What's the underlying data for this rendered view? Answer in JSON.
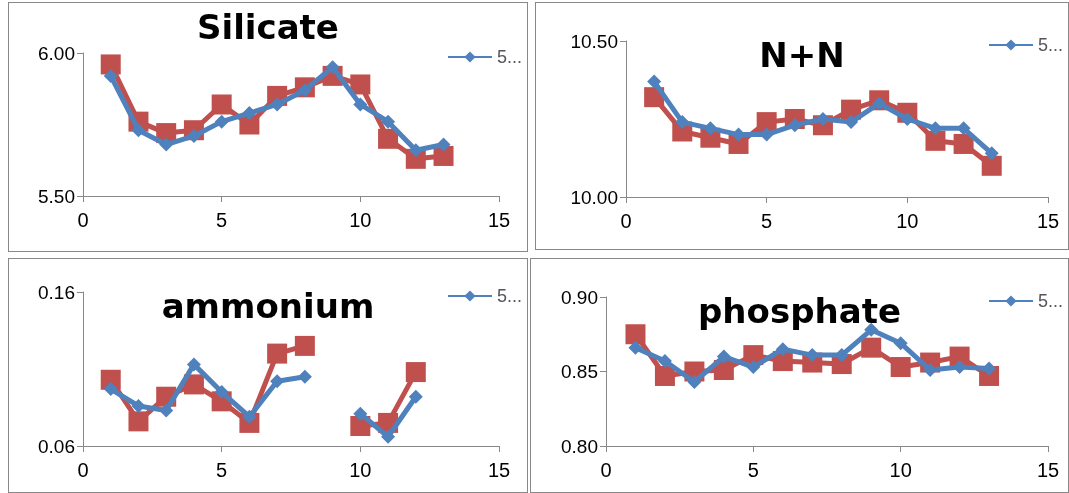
{
  "chart_data": [
    {
      "type": "line",
      "title": "Silicate",
      "x": [
        1,
        2,
        3,
        4,
        5,
        6,
        7,
        8,
        9,
        10,
        11,
        12,
        13
      ],
      "legend": "top right",
      "xlim": [
        0,
        15
      ],
      "xticks": [
        0,
        5,
        10,
        15
      ],
      "ylim": [
        5.5,
        6
      ],
      "yticks": [
        {
          "value": 5.5,
          "label": "5.50"
        },
        {
          "value": 6,
          "label": "6.00"
        }
      ],
      "series": [
        {
          "name": "5...",
          "color": "#4f81bd",
          "marker": "diamond",
          "values": [
            5.92,
            5.73,
            5.68,
            5.71,
            5.76,
            5.79,
            5.82,
            5.87,
            5.95,
            5.82,
            5.76,
            5.66,
            5.68
          ]
        },
        {
          "color": "#c0504d",
          "marker": "square",
          "values": [
            5.96,
            5.76,
            5.72,
            5.73,
            5.82,
            5.75,
            5.85,
            5.88,
            5.92,
            5.89,
            5.7,
            5.63,
            5.64
          ]
        }
      ]
    },
    {
      "type": "line",
      "title": "N+N",
      "x": [
        1,
        2,
        3,
        4,
        5,
        6,
        7,
        8,
        9,
        10,
        11,
        12,
        13
      ],
      "legend": "top right",
      "xlim": [
        0,
        15
      ],
      "xticks": [
        0,
        5,
        10,
        15
      ],
      "ylim": [
        10,
        10.5
      ],
      "yticks": [
        {
          "value": 10,
          "label": "10.00"
        },
        {
          "value": 10.5,
          "label": "10.50"
        }
      ],
      "series": [
        {
          "name": "5...",
          "color": "#4f81bd",
          "marker": "diamond",
          "values": [
            10.37,
            10.24,
            10.22,
            10.2,
            10.2,
            10.23,
            10.25,
            10.24,
            10.3,
            10.25,
            10.22,
            10.22,
            10.14
          ]
        },
        {
          "color": "#c0504d",
          "marker": "square",
          "values": [
            10.32,
            10.21,
            10.19,
            10.17,
            10.24,
            10.25,
            10.23,
            10.28,
            10.31,
            10.27,
            10.18,
            10.17,
            10.1
          ]
        }
      ]
    },
    {
      "type": "line",
      "title": "ammonium",
      "x": [
        1,
        2,
        3,
        4,
        5,
        6,
        7,
        8,
        9,
        10,
        11,
        12
      ],
      "legend": "top right",
      "xlim": [
        0,
        15
      ],
      "xticks": [
        0,
        5,
        10,
        15
      ],
      "ylim": [
        0.06,
        0.16
      ],
      "yticks": [
        0.06,
        0.16
      ],
      "series": [
        {
          "name": "5...",
          "color": "#4f81bd",
          "marker": "diamond",
          "values": [
            0.097,
            0.086,
            0.083,
            0.113,
            0.095,
            0.079,
            0.102,
            0.105,
            null,
            0.081,
            0.066,
            0.092
          ]
        },
        {
          "color": "#c0504d",
          "marker": "square",
          "values": [
            0.103,
            0.076,
            0.092,
            0.1,
            0.089,
            0.075,
            0.12,
            0.125,
            null,
            0.073,
            0.075,
            0.108
          ]
        }
      ]
    },
    {
      "type": "line",
      "title": "phosphate",
      "x": [
        1,
        2,
        3,
        4,
        5,
        6,
        7,
        8,
        9,
        10,
        11,
        12,
        13
      ],
      "legend": "top right",
      "xlim": [
        0,
        15
      ],
      "xticks": [
        0,
        5,
        10,
        15
      ],
      "ylim": [
        0.8,
        0.9
      ],
      "yticks": [
        {
          "value": 0.8,
          "label": "0.80"
        },
        {
          "value": 0.85,
          "label": "0.85"
        },
        {
          "value": 0.9,
          "label": "0.90"
        }
      ],
      "series": [
        {
          "name": "5...",
          "color": "#4f81bd",
          "marker": "diamond",
          "values": [
            0.866,
            0.857,
            0.843,
            0.86,
            0.853,
            0.865,
            0.861,
            0.861,
            0.878,
            0.869,
            0.851,
            0.853,
            0.852
          ]
        },
        {
          "color": "#c0504d",
          "marker": "square",
          "values": [
            0.875,
            0.847,
            0.85,
            0.851,
            0.861,
            0.857,
            0.856,
            0.855,
            0.866,
            0.853,
            0.856,
            0.86,
            0.847
          ]
        }
      ]
    }
  ]
}
